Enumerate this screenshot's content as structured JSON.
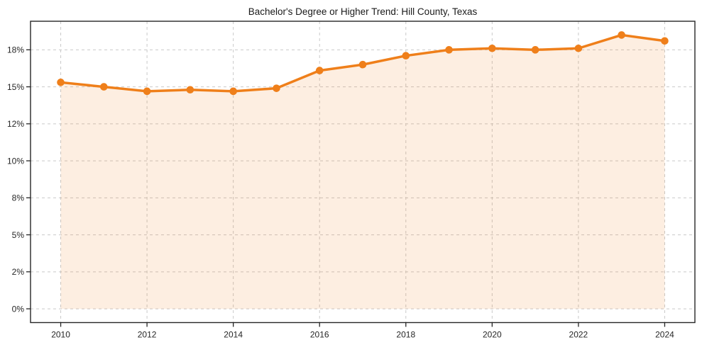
{
  "chart_data": {
    "type": "line",
    "title": "Bachelor's Degree or Higher Trend: Hill County, Texas",
    "x": [
      2010,
      2011,
      2012,
      2013,
      2014,
      2015,
      2016,
      2017,
      2018,
      2019,
      2020,
      2021,
      2022,
      2023,
      2024
    ],
    "values": [
      15.3,
      15.0,
      14.7,
      14.8,
      14.7,
      14.9,
      16.1,
      16.5,
      17.1,
      17.5,
      17.6,
      17.5,
      17.6,
      18.5,
      18.1
    ],
    "xlabel": "",
    "ylabel": "",
    "xlim": [
      2009.3,
      2024.7
    ],
    "ylim": [
      -0.93,
      19.43
    ],
    "xtick_values": [
      2010,
      2012,
      2014,
      2016,
      2018,
      2020,
      2022,
      2024
    ],
    "xtick_labels": [
      "2010",
      "2012",
      "2014",
      "2016",
      "2018",
      "2020",
      "2022",
      "2024"
    ],
    "ytick_values": [
      0,
      2.5,
      5,
      7.5,
      10,
      12.5,
      15,
      17.5
    ],
    "ytick_labels": [
      "0%",
      "2%",
      "5%",
      "8%",
      "10%",
      "12%",
      "15%",
      "18%"
    ],
    "grid": true,
    "legend": false,
    "area_fill_to_zero": true,
    "marker": "circle",
    "colors": {
      "line": "#ef7f1a",
      "marker": "#ef7f1a",
      "fill_opacity": 0.13,
      "grid": "#c9c9c9",
      "axis": "#262626",
      "tick_text": "#262626",
      "title_text": "#1a1a1a",
      "background": "#ffffff"
    }
  }
}
